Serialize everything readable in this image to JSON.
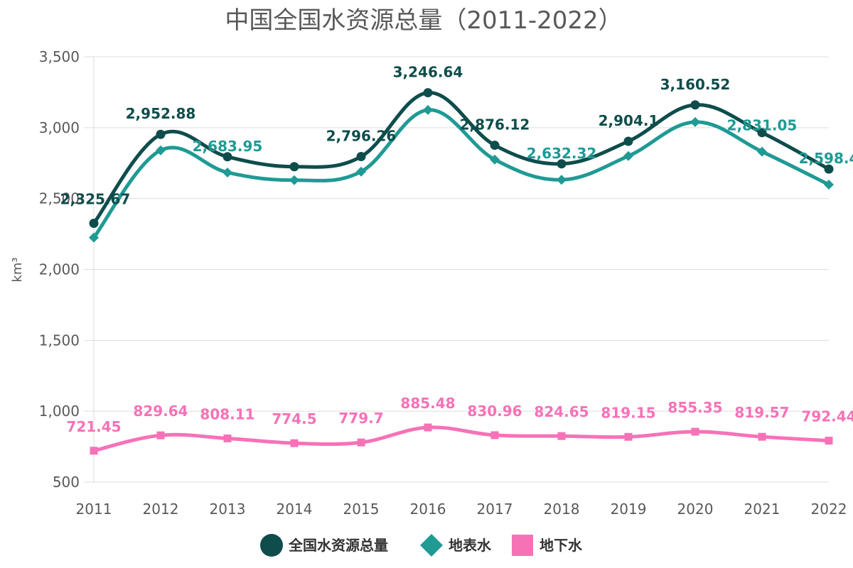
{
  "chart_data": {
    "type": "line",
    "title": "中国全国水资源总量（2011-2022）",
    "ylabel": "km³",
    "xlabel": "",
    "ylim": [
      500,
      3500
    ],
    "yticks": [
      500,
      1000,
      1500,
      2000,
      2500,
      3000,
      3500
    ],
    "ytick_labels": [
      "500",
      "1,000",
      "1,500",
      "2,000",
      "2,500",
      "3,000",
      "3,500"
    ],
    "categories": [
      "2011",
      "2012",
      "2013",
      "2014",
      "2015",
      "2016",
      "2017",
      "2018",
      "2019",
      "2020",
      "2021",
      "2022"
    ],
    "grid": true,
    "legend_position": "bottom",
    "series": [
      {
        "name": "全国水资源总量",
        "color": "#0e4d4b",
        "marker": "circle",
        "values": [
          2325.67,
          2952.88,
          2795,
          2725,
          2796.26,
          3246.64,
          2876.12,
          2745,
          2904.1,
          3160.52,
          2965,
          2708
        ],
        "labels": [
          "2,325.67",
          "2,952.88",
          "",
          "",
          "2,796.26",
          "3,246.64",
          "2,876.12",
          "",
          "2,904.1",
          "3,160.52",
          "",
          ""
        ]
      },
      {
        "name": "地表水",
        "color": "#1f9a94",
        "marker": "diamond",
        "values": [
          2225,
          2840,
          2683.95,
          2630,
          2690,
          3125,
          2775,
          2632.32,
          2800,
          3040,
          2831.05,
          2598.4
        ],
        "labels": [
          "",
          "",
          "2,683.95",
          "",
          "",
          "",
          "",
          "2,632.32",
          "",
          "",
          "2,831.05",
          "2,598.4"
        ]
      },
      {
        "name": "地下水",
        "color": "#f672b7",
        "marker": "square",
        "values": [
          721.45,
          829.64,
          808.11,
          774.5,
          779.7,
          885.48,
          830.96,
          824.65,
          819.15,
          855.35,
          819.57,
          792.44
        ],
        "labels": [
          "721.45",
          "829.64",
          "808.11",
          "774.5",
          "779.7",
          "885.48",
          "830.96",
          "824.65",
          "819.15",
          "855.35",
          "819.57",
          "792.44"
        ]
      }
    ]
  }
}
